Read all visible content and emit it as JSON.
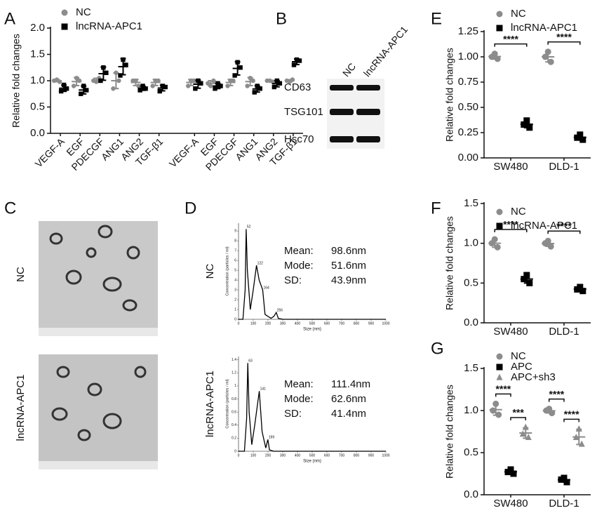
{
  "chart_data": [
    {
      "type": "dot",
      "panel": "A",
      "ylabel": "Relative fold changes",
      "categories": [
        "VEGF-A",
        "EGF",
        "PDECGF",
        "ANG1",
        "ANG2",
        "TGF-β1",
        "VEGF-A",
        "EGF",
        "PDECGF",
        "ANG1",
        "ANG2",
        "TGF-β1"
      ],
      "ylim": [
        0,
        2
      ],
      "yticks": [
        {
          "value": 0,
          "label": "0.0"
        },
        0.5,
        {
          "value": 1,
          "label": "1.0"
        },
        1.5,
        {
          "value": 2,
          "label": "2.0"
        }
      ],
      "legend": "upper left",
      "series": [
        {
          "name": "NC",
          "color": "#8c8c8c",
          "marker": "circle",
          "values": [
            [
              1.0,
              0.98,
              1.02
            ],
            [
              0.9,
              1.0,
              1.05
            ],
            [
              1.0,
              1.05,
              0.98
            ],
            [
              0.85,
              1.0,
              1.15
            ],
            [
              1.0,
              0.9,
              1.0
            ],
            [
              0.9,
              1.0,
              1.0
            ],
            [
              0.9,
              1.0,
              1.0
            ],
            [
              0.95,
              1.0,
              0.9
            ],
            [
              0.9,
              1.0,
              1.0
            ],
            [
              0.9,
              1.0,
              1.05
            ],
            [
              1.0,
              0.98,
              1.0
            ],
            [
              1.0,
              1.02,
              0.98
            ]
          ]
        },
        {
          "name": "lncRNA-APC1",
          "color": "#000000",
          "marker": "square",
          "values": [
            [
              0.8,
              0.85,
              0.92
            ],
            [
              0.75,
              0.82,
              0.9
            ],
            [
              1.0,
              1.15,
              1.25
            ],
            [
              1.1,
              1.3,
              1.4
            ],
            [
              0.82,
              0.85,
              0.9
            ],
            [
              0.8,
              0.88,
              0.9
            ],
            [
              0.85,
              0.95,
              1.0
            ],
            [
              0.85,
              0.9,
              0.95
            ],
            [
              1.1,
              1.25,
              1.35
            ],
            [
              0.78,
              0.85,
              0.9
            ],
            [
              0.88,
              0.95,
              1.0
            ],
            [
              1.3,
              1.38,
              1.4
            ]
          ]
        }
      ]
    },
    {
      "type": "dot",
      "panel": "E",
      "ylabel": "Relative fold changes",
      "categories": [
        "SW480",
        "DLD-1"
      ],
      "ylim": [
        0,
        1.25
      ],
      "yticks": [
        {
          "value": 0,
          "label": "0.00"
        },
        0.25,
        {
          "value": 0.5,
          "label": "0.50"
        },
        0.75,
        {
          "value": 1,
          "label": "1.00"
        },
        1.25
      ],
      "legend": "upper left",
      "significance": [
        [
          "****"
        ],
        [
          "****"
        ]
      ],
      "series": [
        {
          "name": "NC",
          "color": "#8c8c8c",
          "marker": "circle",
          "values": [
            [
              1.0,
              0.98,
              1.03
            ],
            [
              1.0,
              0.95,
              1.05
            ]
          ]
        },
        {
          "name": "lncRNA-APC1",
          "color": "#000000",
          "marker": "square",
          "values": [
            [
              0.33,
              0.3,
              0.37
            ],
            [
              0.2,
              0.18,
              0.23
            ]
          ]
        }
      ]
    },
    {
      "type": "dot",
      "panel": "F",
      "ylabel": "Relative fold changes",
      "categories": [
        "SW480",
        "DLD-1"
      ],
      "ylim": [
        0,
        1.5
      ],
      "yticks": [
        {
          "value": 0,
          "label": "0.0"
        },
        0.5,
        {
          "value": 1,
          "label": "1.0"
        },
        1.5
      ],
      "legend": "upper left",
      "significance": [
        [
          "****"
        ],
        [
          "****"
        ]
      ],
      "series": [
        {
          "name": "NC",
          "color": "#8c8c8c",
          "marker": "circle",
          "values": [
            [
              1.0,
              0.95,
              1.05
            ],
            [
              1.0,
              0.96,
              1.03
            ]
          ]
        },
        {
          "name": "lncRNA-APC1",
          "color": "#000000",
          "marker": "square",
          "values": [
            [
              0.55,
              0.5,
              0.6
            ],
            [
              0.42,
              0.4,
              0.45
            ]
          ]
        }
      ]
    },
    {
      "type": "dot",
      "panel": "G",
      "ylabel": "Relative fold changes",
      "categories": [
        "SW480",
        "DLD-1"
      ],
      "ylim": [
        0,
        1.5
      ],
      "yticks": [
        {
          "value": 0,
          "label": "0.0"
        },
        0.5,
        {
          "value": 1,
          "label": "1.0"
        },
        1.5
      ],
      "legend": "upper left",
      "significance": [
        [
          "****",
          "***"
        ],
        [
          "****",
          "****"
        ]
      ],
      "series": [
        {
          "name": "NC",
          "color": "#8c8c8c",
          "marker": "circle",
          "values": [
            [
              1.0,
              0.95,
              1.08
            ],
            [
              1.0,
              0.97,
              1.02
            ]
          ]
        },
        {
          "name": "APC",
          "color": "#000000",
          "marker": "square",
          "values": [
            [
              0.27,
              0.25,
              0.3
            ],
            [
              0.18,
              0.15,
              0.2
            ]
          ]
        },
        {
          "name": "APC+sh3",
          "color": "#8c8c8c",
          "marker": "triangle",
          "values": [
            [
              0.72,
              0.68,
              0.8
            ],
            [
              0.68,
              0.6,
              0.78
            ]
          ]
        }
      ]
    },
    {
      "type": "line",
      "panel": "D",
      "label": "NC",
      "xlabel": "Size (nm)",
      "ylabel": "Concentration (particles / ml)",
      "x": [
        0,
        30,
        45,
        52,
        60,
        80,
        100,
        122,
        140,
        164,
        180,
        220,
        240,
        256,
        270,
        300,
        400,
        1000
      ],
      "values": [
        0,
        0,
        3,
        9.2,
        5,
        1,
        3,
        5.5,
        4,
        3,
        0.5,
        0.1,
        0.3,
        0.7,
        0.1,
        0,
        0,
        0
      ],
      "peaks": [
        52,
        122,
        164,
        256
      ],
      "color": "#000000",
      "xlim": [
        0,
        1000
      ],
      "xticks": [
        0,
        100,
        200,
        300,
        400,
        500,
        600,
        700,
        800,
        900,
        1000
      ],
      "ylim": [
        0,
        9.8
      ],
      "yticks": [
        0,
        1,
        2,
        3,
        4,
        5,
        6,
        7,
        8,
        9
      ],
      "stats": [
        {
          "label": "Mean:",
          "value": "98.6nm"
        },
        {
          "label": "Mode:",
          "value": "51.6nm"
        },
        {
          "label": "SD:",
          "value": "43.9nm"
        }
      ]
    },
    {
      "type": "line",
      "label": "lncRNA-APC1",
      "xlabel": "Size (nm)",
      "ylabel": "Concentration (particles / ml)",
      "x": [
        0,
        40,
        55,
        63,
        72,
        90,
        110,
        141,
        160,
        185,
        199,
        210,
        240,
        1000
      ],
      "values": [
        0,
        0,
        0.5,
        1.35,
        0.6,
        0.1,
        0.4,
        0.92,
        0.3,
        0.05,
        0.18,
        0.02,
        0,
        0
      ],
      "peaks": [
        63,
        141,
        199
      ],
      "color": "#000000",
      "xlim": [
        0,
        1000
      ],
      "xticks": [
        0,
        100,
        200,
        300,
        400,
        500,
        600,
        700,
        800,
        900,
        1000
      ],
      "ylim": [
        0,
        1.45
      ],
      "yticks": [
        0,
        0.2,
        0.4,
        0.6,
        0.8,
        1,
        1.2,
        1.4
      ],
      "stats": [
        {
          "label": "Mean:",
          "value": "111.4nm"
        },
        {
          "label": "Mode:",
          "value": "62.6nm"
        },
        {
          "label": "SD:",
          "value": "41.4nm"
        }
      ]
    }
  ],
  "blot": {
    "panel": "B",
    "columns": [
      "NC",
      "lncRNA-APC1"
    ],
    "rows": [
      "CD63",
      "TSG101",
      "Hsc70"
    ]
  },
  "tem": {
    "panel": "C",
    "rows": [
      "NC",
      "lncRNA-APC1"
    ]
  }
}
